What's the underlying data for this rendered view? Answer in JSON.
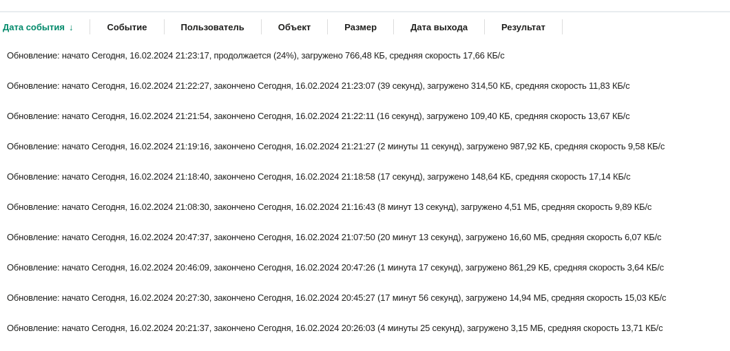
{
  "accent_color": "#00896a",
  "columns": [
    {
      "label": "Дата события",
      "sorted": "desc",
      "icon": "arrow-down-icon"
    },
    {
      "label": "Событие"
    },
    {
      "label": "Пользователь"
    },
    {
      "label": "Объект"
    },
    {
      "label": "Размер"
    },
    {
      "label": "Дата выхода"
    },
    {
      "label": "Результат"
    }
  ],
  "sort_arrow": "↓",
  "rows": [
    "Обновление: начато Сегодня, 16.02.2024 21:23:17, продолжается (24%), загружено 766,48 КБ, средняя скорость 17,66 КБ/с",
    "Обновление: начато Сегодня, 16.02.2024 21:22:27, закончено Сегодня, 16.02.2024 21:23:07 (39 секунд), загружено 314,50 КБ, средняя скорость 11,83 КБ/с",
    "Обновление: начато Сегодня, 16.02.2024 21:21:54, закончено Сегодня, 16.02.2024 21:22:11 (16 секунд), загружено 109,40 КБ, средняя скорость 13,67 КБ/с",
    "Обновление: начато Сегодня, 16.02.2024 21:19:16, закончено Сегодня, 16.02.2024 21:21:27 (2 минуты 11 секунд), загружено 987,92 КБ, средняя скорость 9,58 КБ/с",
    "Обновление: начато Сегодня, 16.02.2024 21:18:40, закончено Сегодня, 16.02.2024 21:18:58 (17 секунд), загружено 148,64 КБ, средняя скорость 17,14 КБ/с",
    "Обновление: начато Сегодня, 16.02.2024 21:08:30, закончено Сегодня, 16.02.2024 21:16:43 (8 минут 13 секунд), загружено 4,51 МБ, средняя скорость 9,89 КБ/с",
    "Обновление: начато Сегодня, 16.02.2024 20:47:37, закончено Сегодня, 16.02.2024 21:07:50 (20 минут 13 секунд), загружено 16,60 МБ, средняя скорость 6,07 КБ/с",
    "Обновление: начато Сегодня, 16.02.2024 20:46:09, закончено Сегодня, 16.02.2024 20:47:26 (1 минута 17 секунд), загружено 861,29 КБ, средняя скорость 3,64 КБ/с",
    "Обновление: начато Сегодня, 16.02.2024 20:27:30, закончено Сегодня, 16.02.2024 20:45:27 (17 минут 56 секунд), загружено 14,94 МБ, средняя скорость 15,03 КБ/с",
    "Обновление: начато Сегодня, 16.02.2024 20:21:37, закончено Сегодня, 16.02.2024 20:26:03 (4 минуты 25 секунд), загружено 3,15 МБ, средняя скорость 13,71 КБ/с"
  ]
}
